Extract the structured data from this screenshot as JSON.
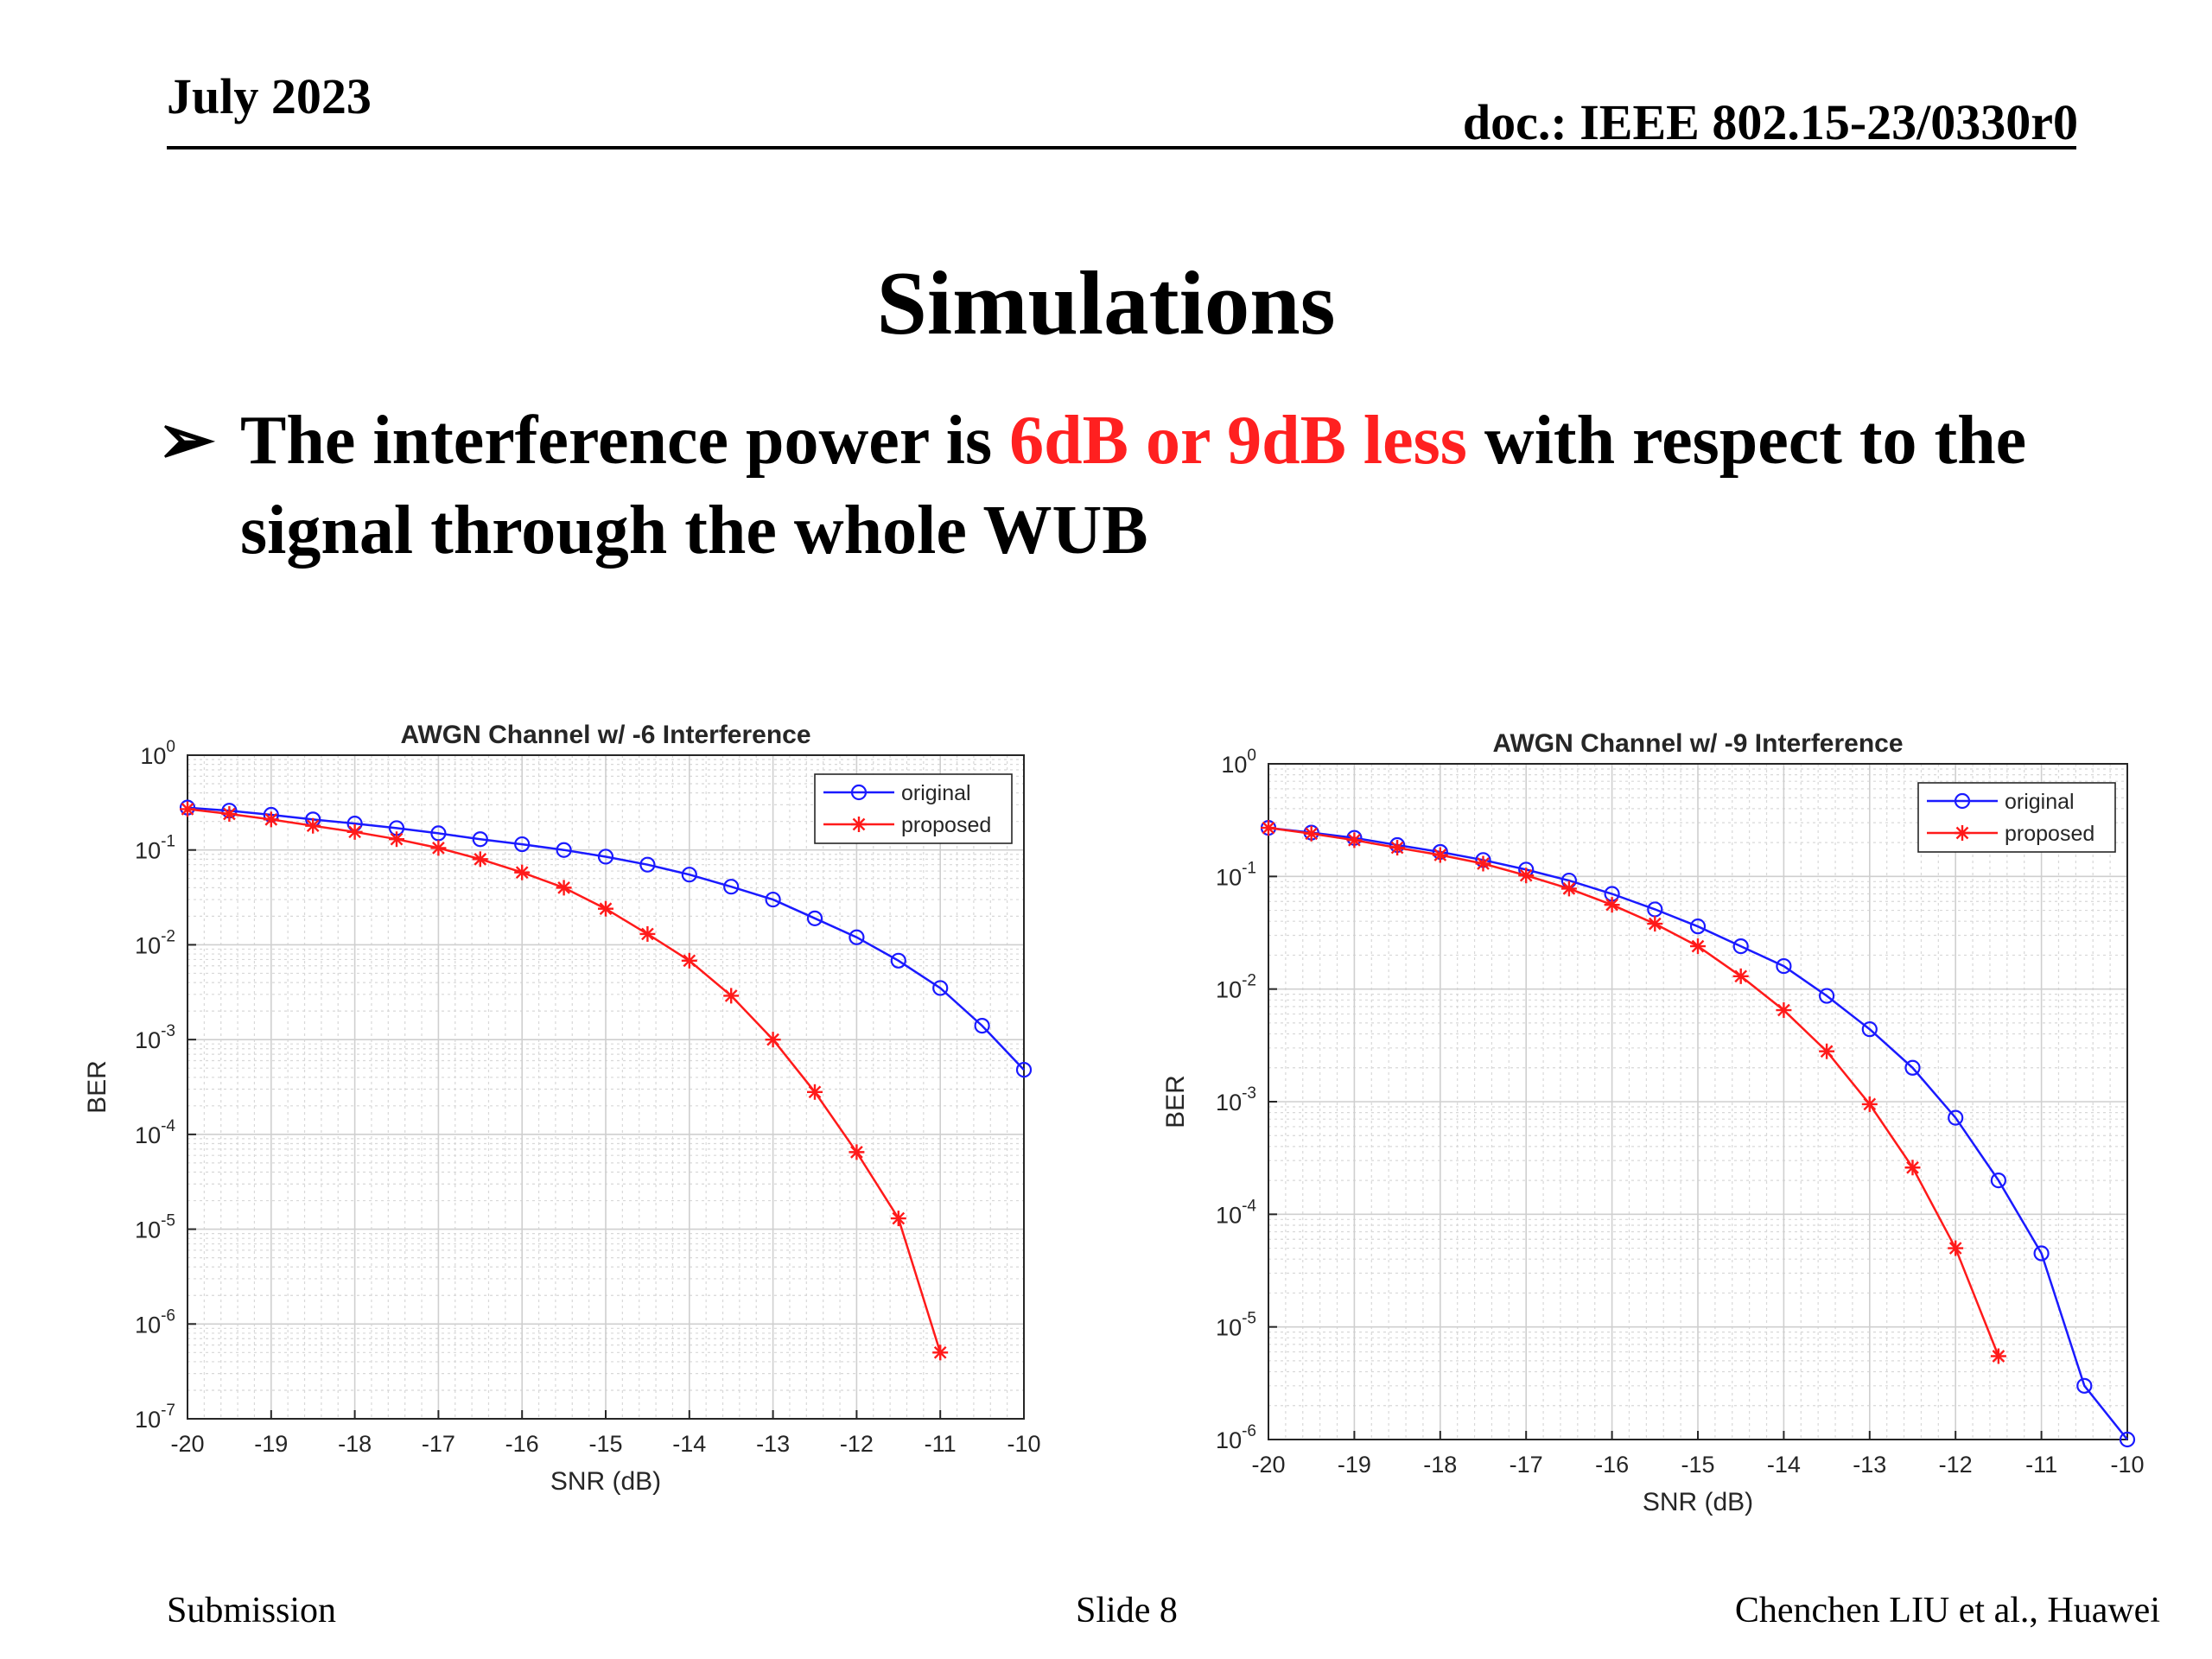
{
  "header": {
    "date": "July 2023",
    "doc_id": "doc.: IEEE 802.15-23/0330r0"
  },
  "slide": {
    "title": "Simulations",
    "bullet_marker": "➢",
    "bullet_parts": [
      {
        "text": "The interference power is ",
        "highlight": false
      },
      {
        "text": "6dB or 9dB less",
        "highlight": true
      },
      {
        "text": " with respect to the signal through the whole WUB",
        "highlight": false
      }
    ]
  },
  "footer": {
    "left": "Submission",
    "center": "Slide 8",
    "right": "Chenchen LIU et al., Huawei"
  },
  "colors": {
    "highlight": "#ff2020",
    "original": "#1a1aff",
    "proposed": "#ff1a1a"
  },
  "chart_data": [
    {
      "type": "line",
      "title": "AWGN Channel w/ -6 Interference",
      "xlabel": "SNR (dB)",
      "ylabel": "BER",
      "xlim": [
        -20,
        -10
      ],
      "ylim_exp": [
        -7,
        0
      ],
      "yscale": "log",
      "xticks": [
        -20,
        -19,
        -18,
        -17,
        -16,
        -15,
        -14,
        -13,
        -12,
        -11,
        -10
      ],
      "xtick_labels": [
        "-20",
        "-19",
        "-18",
        "-17",
        "-16",
        "-15",
        "-14",
        "-13",
        "-12",
        "-11",
        "-10"
      ],
      "ytick_exps": [
        0,
        -1,
        -2,
        -3,
        -4,
        -5,
        -6,
        -7
      ],
      "ytick_base": "10",
      "grid": true,
      "legend_position": "top-right",
      "series": [
        {
          "name": "original",
          "marker": "circle",
          "x": [
            -20,
            -19.5,
            -19,
            -18.5,
            -18,
            -17.5,
            -17,
            -16.5,
            -16,
            -15.5,
            -15,
            -14.5,
            -14,
            -13.5,
            -13,
            -12.5,
            -12,
            -11.5,
            -11,
            -10.5,
            -10
          ],
          "y": [
            0.28,
            0.26,
            0.235,
            0.21,
            0.19,
            0.17,
            0.15,
            0.13,
            0.115,
            0.1,
            0.085,
            0.07,
            0.055,
            0.041,
            0.03,
            0.019,
            0.012,
            0.0068,
            0.0035,
            0.0014,
            0.00048
          ]
        },
        {
          "name": "proposed",
          "marker": "star",
          "x": [
            -20,
            -19.5,
            -19,
            -18.5,
            -18,
            -17.5,
            -17,
            -16.5,
            -16,
            -15.5,
            -15,
            -14.5,
            -14,
            -13.5,
            -13,
            -12.5,
            -12,
            -11.5,
            -11
          ],
          "y": [
            0.27,
            0.24,
            0.21,
            0.18,
            0.155,
            0.13,
            0.105,
            0.08,
            0.058,
            0.04,
            0.024,
            0.013,
            0.0068,
            0.0029,
            0.001,
            0.00028,
            6.5e-05,
            1.3e-05,
            5e-07
          ]
        }
      ]
    },
    {
      "type": "line",
      "title": "AWGN Channel w/ -9 Interference",
      "xlabel": "SNR (dB)",
      "ylabel": "BER",
      "xlim": [
        -20,
        -10
      ],
      "ylim_exp": [
        -6,
        0
      ],
      "yscale": "log",
      "xticks": [
        -20,
        -19,
        -18,
        -17,
        -16,
        -15,
        -14,
        -13,
        -12,
        -11,
        -10
      ],
      "xtick_labels": [
        "-20",
        "-19",
        "-18",
        "-17",
        "-16",
        "-15",
        "-14",
        "-13",
        "-12",
        "-11",
        "-10"
      ],
      "ytick_exps": [
        0,
        -1,
        -2,
        -3,
        -4,
        -5,
        -6
      ],
      "ytick_base": "10",
      "grid": true,
      "legend_position": "top-right",
      "series": [
        {
          "name": "original",
          "marker": "circle",
          "x": [
            -20,
            -19.5,
            -19,
            -18.5,
            -18,
            -17.5,
            -17,
            -16.5,
            -16,
            -15.5,
            -15,
            -14.5,
            -14,
            -13.5,
            -13,
            -12.5,
            -12,
            -11.5,
            -11,
            -10.5,
            -10
          ],
          "y": [
            0.27,
            0.245,
            0.22,
            0.19,
            0.165,
            0.14,
            0.115,
            0.092,
            0.07,
            0.051,
            0.036,
            0.024,
            0.016,
            0.0087,
            0.0044,
            0.002,
            0.00072,
            0.0002,
            4.5e-05,
            3e-06,
            1e-06
          ]
        },
        {
          "name": "proposed",
          "marker": "star",
          "x": [
            -20,
            -19.5,
            -19,
            -18.5,
            -18,
            -17.5,
            -17,
            -16.5,
            -16,
            -15.5,
            -15,
            -14.5,
            -14,
            -13.5,
            -13,
            -12.5,
            -12,
            -11.5
          ],
          "y": [
            0.27,
            0.24,
            0.21,
            0.18,
            0.155,
            0.13,
            0.102,
            0.078,
            0.056,
            0.038,
            0.024,
            0.013,
            0.0065,
            0.0028,
            0.00095,
            0.00026,
            5e-05,
            5.5e-06
          ]
        }
      ]
    }
  ]
}
